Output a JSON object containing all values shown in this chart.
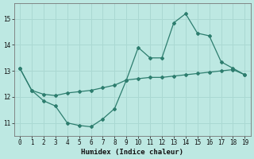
{
  "xlabel": "Humidex (Indice chaleur)",
  "x": [
    0,
    1,
    2,
    3,
    4,
    5,
    6,
    7,
    8,
    9,
    10,
    11,
    12,
    13,
    14,
    15,
    16,
    17,
    18,
    19
  ],
  "line1": [
    13.1,
    12.25,
    11.85,
    11.65,
    11.0,
    10.9,
    10.85,
    11.15,
    11.55,
    12.65,
    13.9,
    13.5,
    13.5,
    14.85,
    15.2,
    14.45,
    14.35,
    13.35,
    13.1,
    12.85
  ],
  "line2": [
    13.1,
    12.25,
    12.1,
    12.05,
    12.15,
    12.2,
    12.25,
    12.35,
    12.45,
    12.65,
    12.7,
    12.75,
    12.75,
    12.8,
    12.85,
    12.9,
    12.95,
    13.0,
    13.05,
    12.85
  ],
  "line_color": "#2d7d6e",
  "bg_color": "#bde8e2",
  "grid_color": "#aad8d2",
  "ylim": [
    10.5,
    15.6
  ],
  "xlim": [
    -0.5,
    19.5
  ],
  "yticks": [
    11,
    12,
    13,
    14,
    15
  ],
  "xticks": [
    0,
    1,
    2,
    3,
    4,
    5,
    6,
    7,
    8,
    9,
    10,
    11,
    12,
    13,
    14,
    15,
    16,
    17,
    18,
    19
  ]
}
